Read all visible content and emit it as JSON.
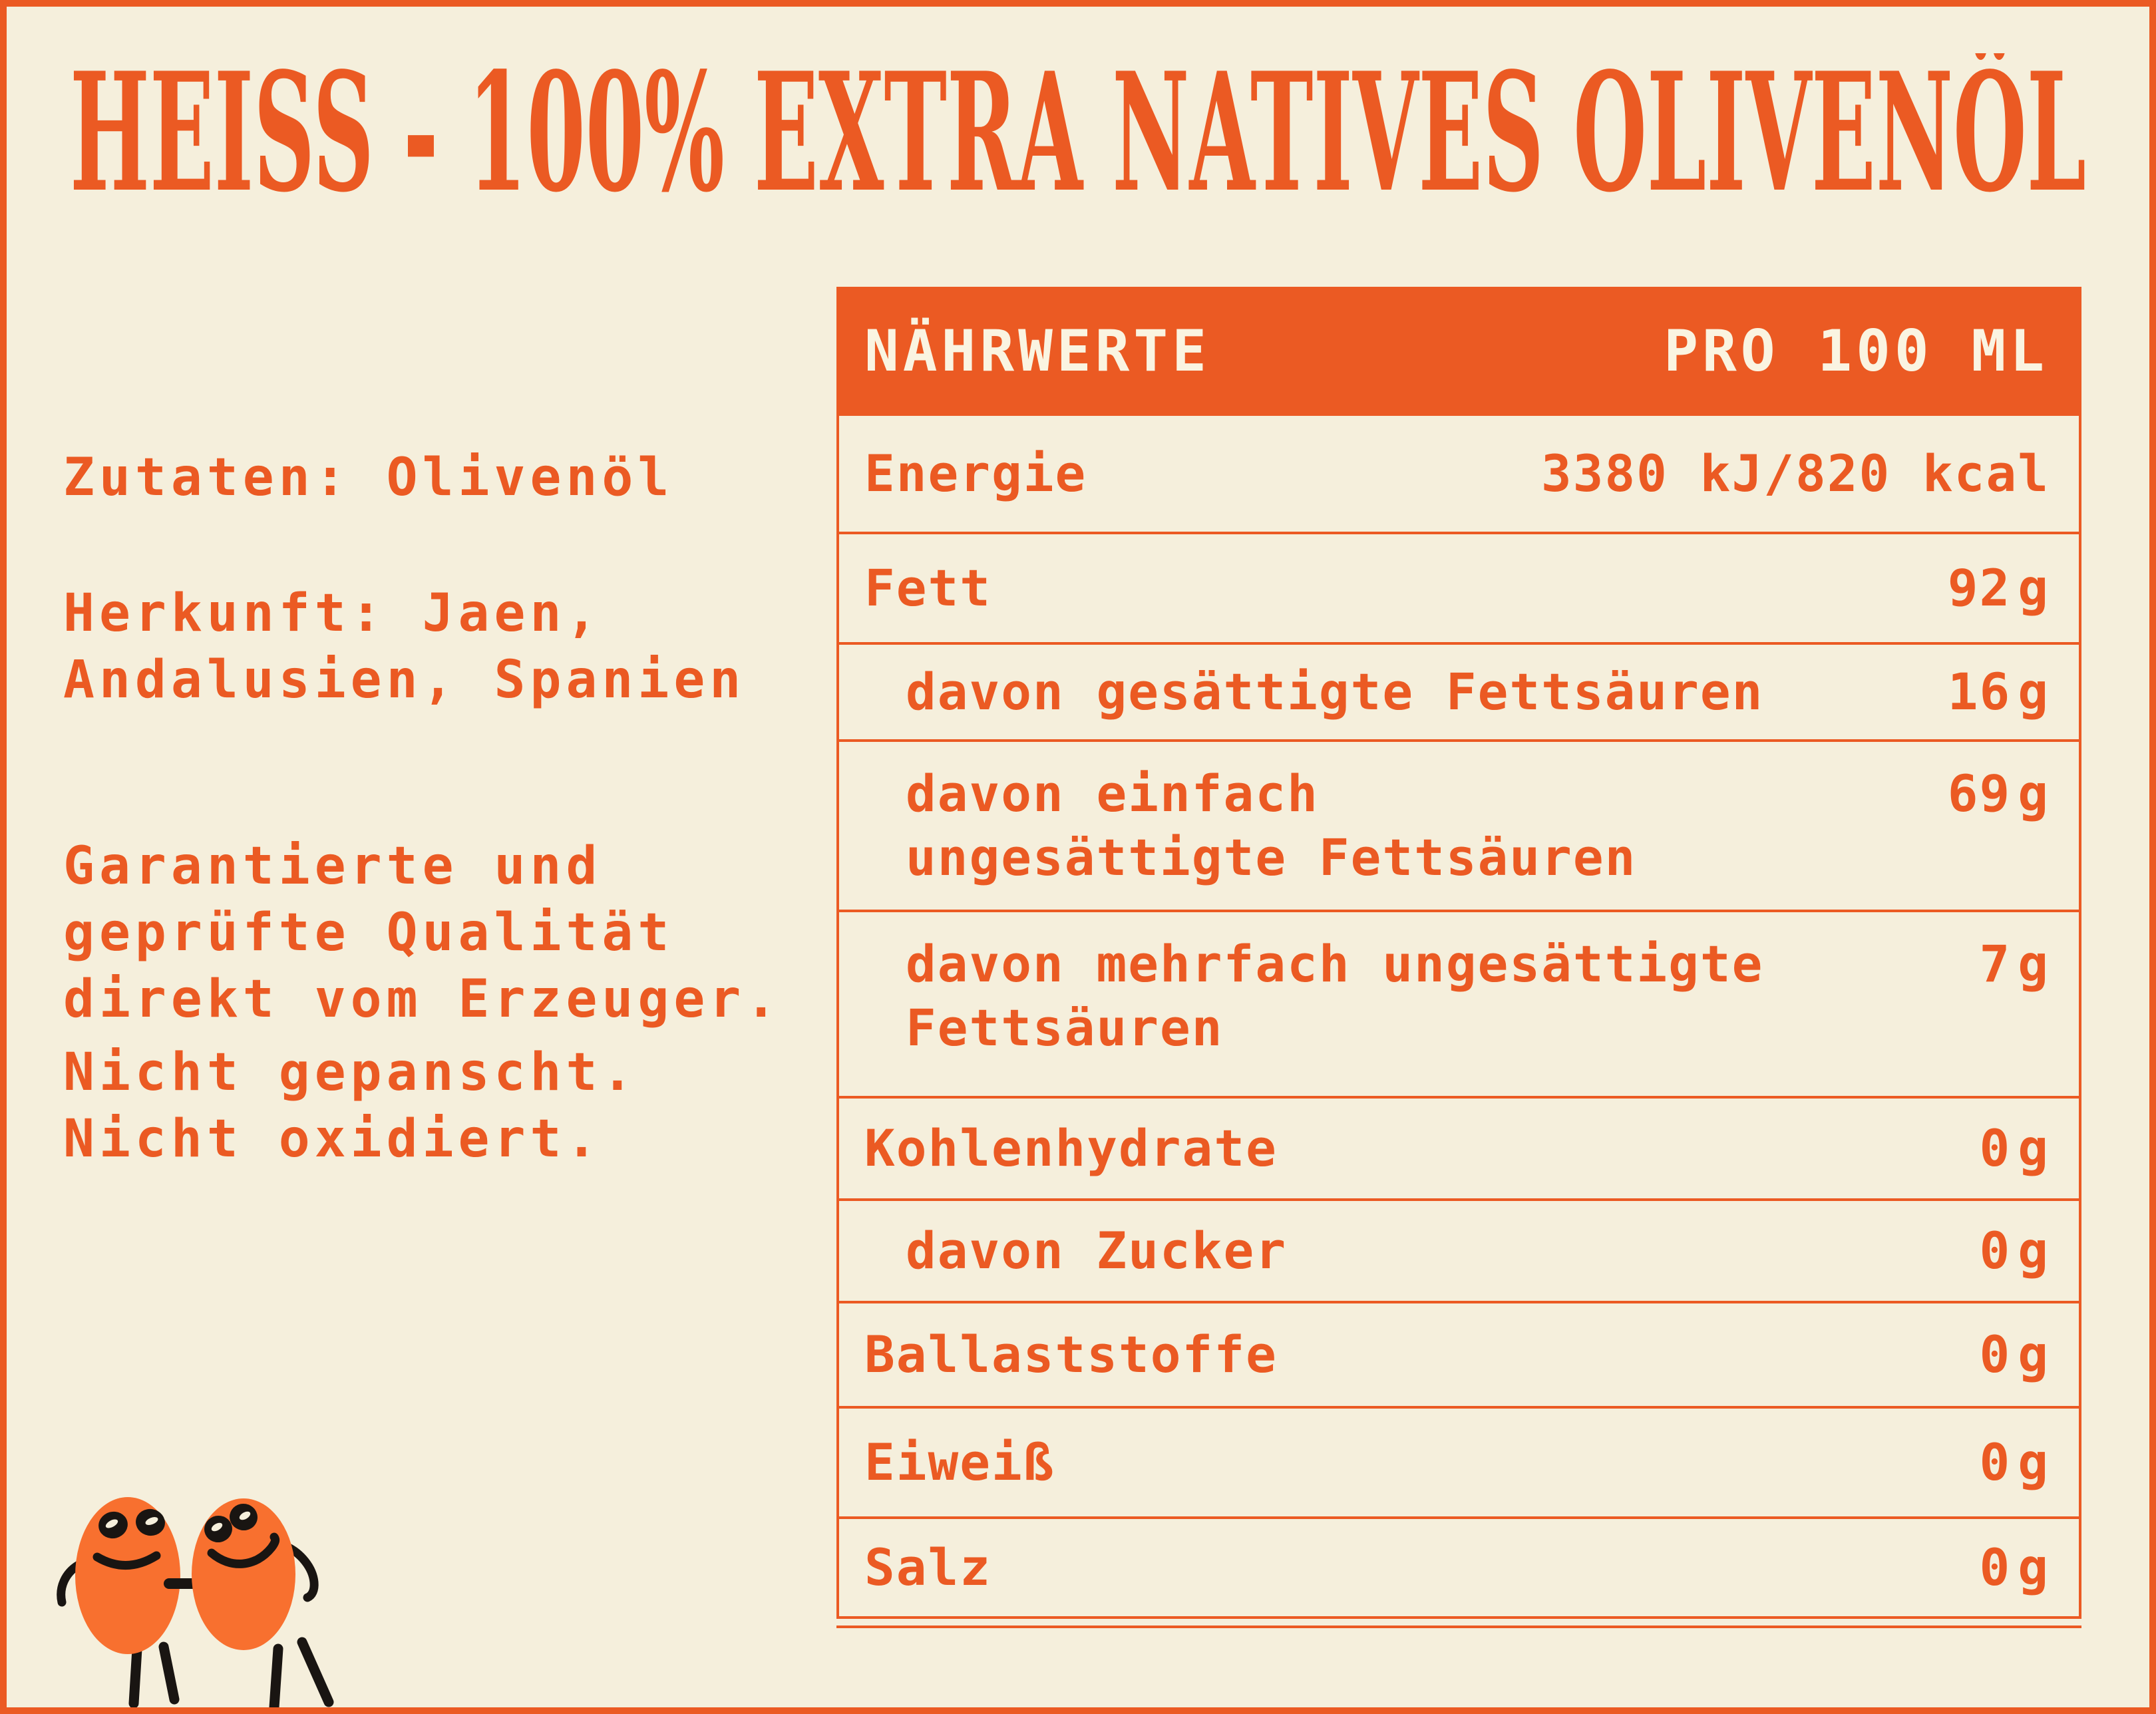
{
  "colors": {
    "accent": "#EB5A23",
    "blob": "#F8702F",
    "bg": "#F5EFDC",
    "ink": "#191512",
    "header_text": "#FAF4E1"
  },
  "title": "HEISS - 100% EXTRA NATIVES OLIVENÖL",
  "info": {
    "paragraphs": [
      {
        "text": "Zutaten: Olivenöl"
      },
      {
        "text": "Herkunft: Jaen,\nAndalusien, Spanien"
      },
      {
        "text": "Garantierte und\ngeprüfte Qualität\ndirekt vom Erzeuger."
      },
      {
        "text": "Nicht gepanscht.\nNicht oxidiert."
      }
    ]
  },
  "nutrition_table": {
    "header": {
      "title": "NÄHRWERTE",
      "column": "PRO 100 ML"
    },
    "rows": [
      {
        "label": "Energie",
        "value": "3380 kJ/820 kcal",
        "unit": "",
        "indent": false
      },
      {
        "label": "Fett",
        "value": "92",
        "unit": "g",
        "indent": false
      },
      {
        "label": "davon gesättigte Fettsäuren",
        "value": "16",
        "unit": "g",
        "indent": true
      },
      {
        "label": "davon einfach\nungesättigte Fettsäuren",
        "value": "69",
        "unit": "g",
        "indent": true
      },
      {
        "label": "davon mehrfach ungesättigte\nFettsäuren",
        "value": "7",
        "unit": "g",
        "indent": true
      },
      {
        "label": "Kohlenhydrate",
        "value": "0",
        "unit": "g",
        "indent": false
      },
      {
        "label": "davon Zucker",
        "value": "0",
        "unit": "g",
        "indent": true
      },
      {
        "label": "Ballaststoffe",
        "value": "0",
        "unit": "g",
        "indent": false
      },
      {
        "label": "Eiweiß",
        "value": "0",
        "unit": "g",
        "indent": false
      },
      {
        "label": "Salz",
        "value": "0",
        "unit": "g",
        "indent": false
      }
    ]
  }
}
